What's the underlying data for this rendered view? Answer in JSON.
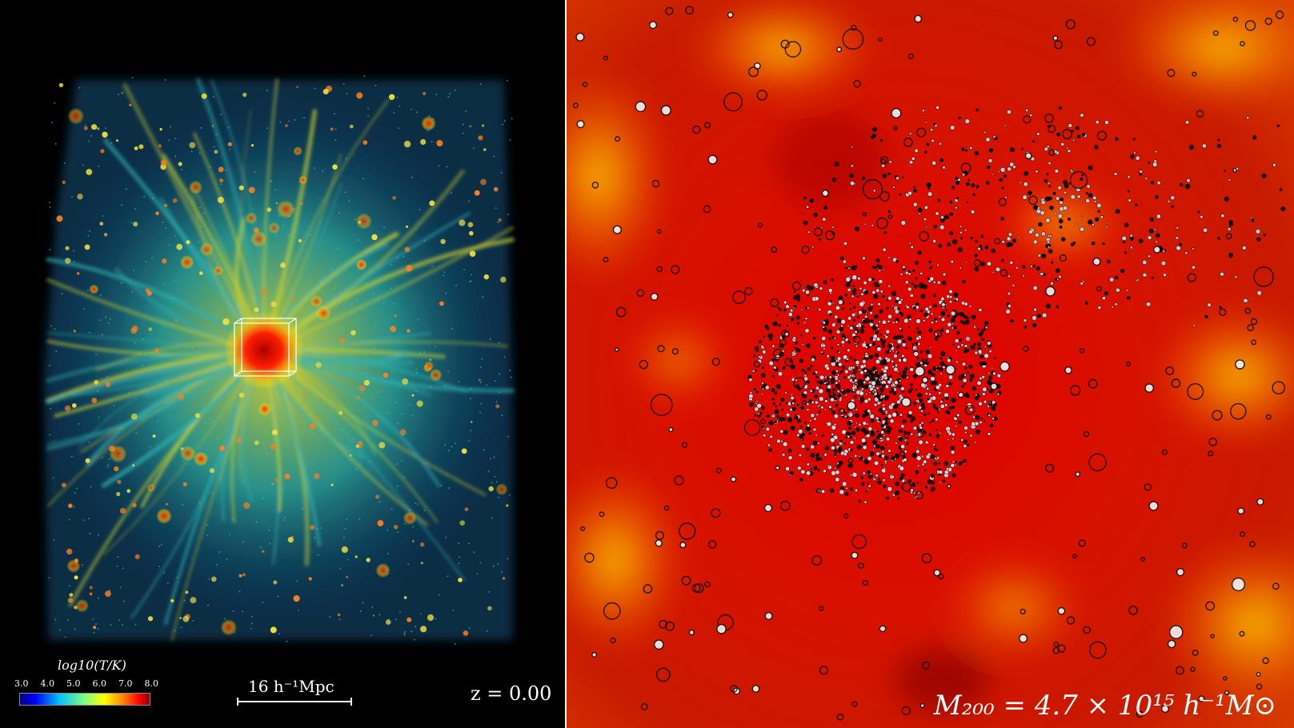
{
  "left_panel": {
    "colorbar": {
      "label": "log10(T/K)",
      "ticks": [
        "3.0",
        "4.0",
        "5.0",
        "6.0",
        "7.0",
        "8.0"
      ],
      "colors": [
        "#00008b",
        "#0000ff",
        "#00bfff",
        "#7fff7f",
        "#ffff00",
        "#ff7f00",
        "#ff0000",
        "#8b0000"
      ]
    },
    "scalebar_label": "16 h⁻¹Mpc",
    "redshift_label": "z = 0.00"
  },
  "right_panel": {
    "mass_label": "M₂₀₀ = 4.7 × 10¹⁵ h⁻¹M⊙"
  },
  "colors": {
    "background": "#000000",
    "filament_cool": "#1fa3b5",
    "filament_warm": "#d8d02a",
    "hot_gas": "#ff1e00",
    "intracluster": "#c80000"
  }
}
